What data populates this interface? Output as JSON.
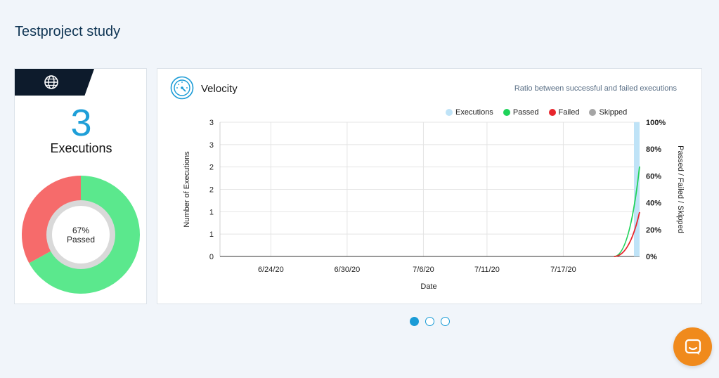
{
  "page": {
    "title": "Testproject study"
  },
  "executions_card": {
    "icon": "globe-icon",
    "count": "3",
    "label": "Executions",
    "donut": {
      "passed_fraction": 0.67,
      "center_value": "67%",
      "center_label": "Passed",
      "colors": {
        "passed": "#5be88d",
        "failed": "#f66b6b",
        "ring": "#d9d9d9"
      }
    }
  },
  "velocity_card": {
    "icon": "speedometer-icon",
    "title": "Velocity",
    "subtitle": "Ratio between successful and failed executions",
    "legend": [
      {
        "label": "Executions",
        "color": "#bfe3f7"
      },
      {
        "label": "Passed",
        "color": "#1fd35a"
      },
      {
        "label": "Failed",
        "color": "#e8252c"
      },
      {
        "label": "Skipped",
        "color": "#a5a5a5"
      }
    ]
  },
  "chart_data": {
    "type": "line",
    "xlabel": "Date",
    "ylabel": "Number of Executions",
    "y2label": "Passed / Failed / Skipped",
    "y_ticks": [
      "0",
      "1",
      "1",
      "2",
      "2",
      "3",
      "3"
    ],
    "y2_ticks": [
      "0%",
      "20%",
      "40%",
      "60%",
      "80%",
      "100%"
    ],
    "x_ticks": [
      "6/24/20",
      "6/30/20",
      "7/6/20",
      "7/11/20",
      "7/17/20"
    ],
    "ylim": [
      0,
      3
    ],
    "y2lim": [
      0,
      100
    ],
    "grid": true,
    "legend_position": "top-right",
    "series": [
      {
        "name": "Executions",
        "x": [
          "7/23/20"
        ],
        "values": [
          3
        ]
      },
      {
        "name": "Passed",
        "x": [
          "7/21/20",
          "7/23/20"
        ],
        "values": [
          0,
          67
        ]
      },
      {
        "name": "Failed",
        "x": [
          "7/21/20",
          "7/23/20"
        ],
        "values": [
          0,
          33
        ]
      },
      {
        "name": "Skipped",
        "x": [],
        "values": []
      }
    ]
  },
  "pager": {
    "count": 3,
    "active": 0
  },
  "chat": {
    "icon": "chat-icon"
  }
}
